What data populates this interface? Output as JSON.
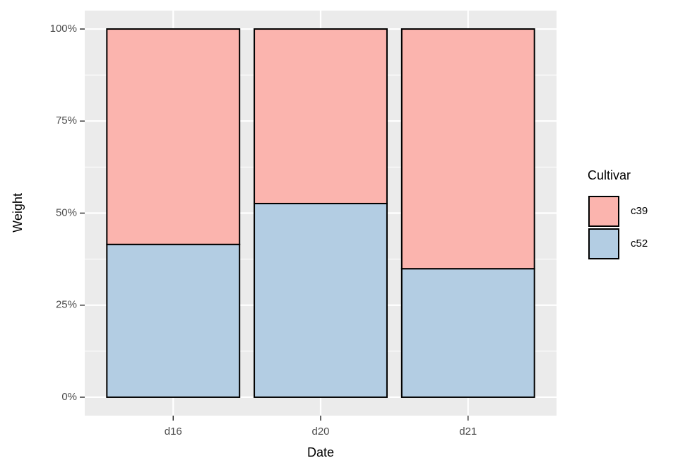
{
  "chart_data": {
    "type": "stacked_bar",
    "x_label": "Date",
    "y_label": "Weight",
    "legend_title": "Cultivar",
    "categories": [
      "d16",
      "d20",
      "d21"
    ],
    "series": [
      {
        "name": "c39",
        "color": "#FBB4AE",
        "values": [
          58.5,
          47.4,
          65.1
        ]
      },
      {
        "name": "c52",
        "color": "#B3CDE3",
        "values": [
          41.5,
          52.6,
          34.9
        ]
      }
    ],
    "ylim": [
      -5,
      105
    ],
    "yticks": [
      {
        "value": 0,
        "label": "0%"
      },
      {
        "value": 25,
        "label": "25%"
      },
      {
        "value": 50,
        "label": "50%"
      },
      {
        "value": 75,
        "label": "75%"
      },
      {
        "value": 100,
        "label": "100%"
      }
    ],
    "y_minor_ticks": [
      12.5,
      37.5,
      62.5,
      87.5
    ],
    "grid": true,
    "legend_position": "right"
  }
}
